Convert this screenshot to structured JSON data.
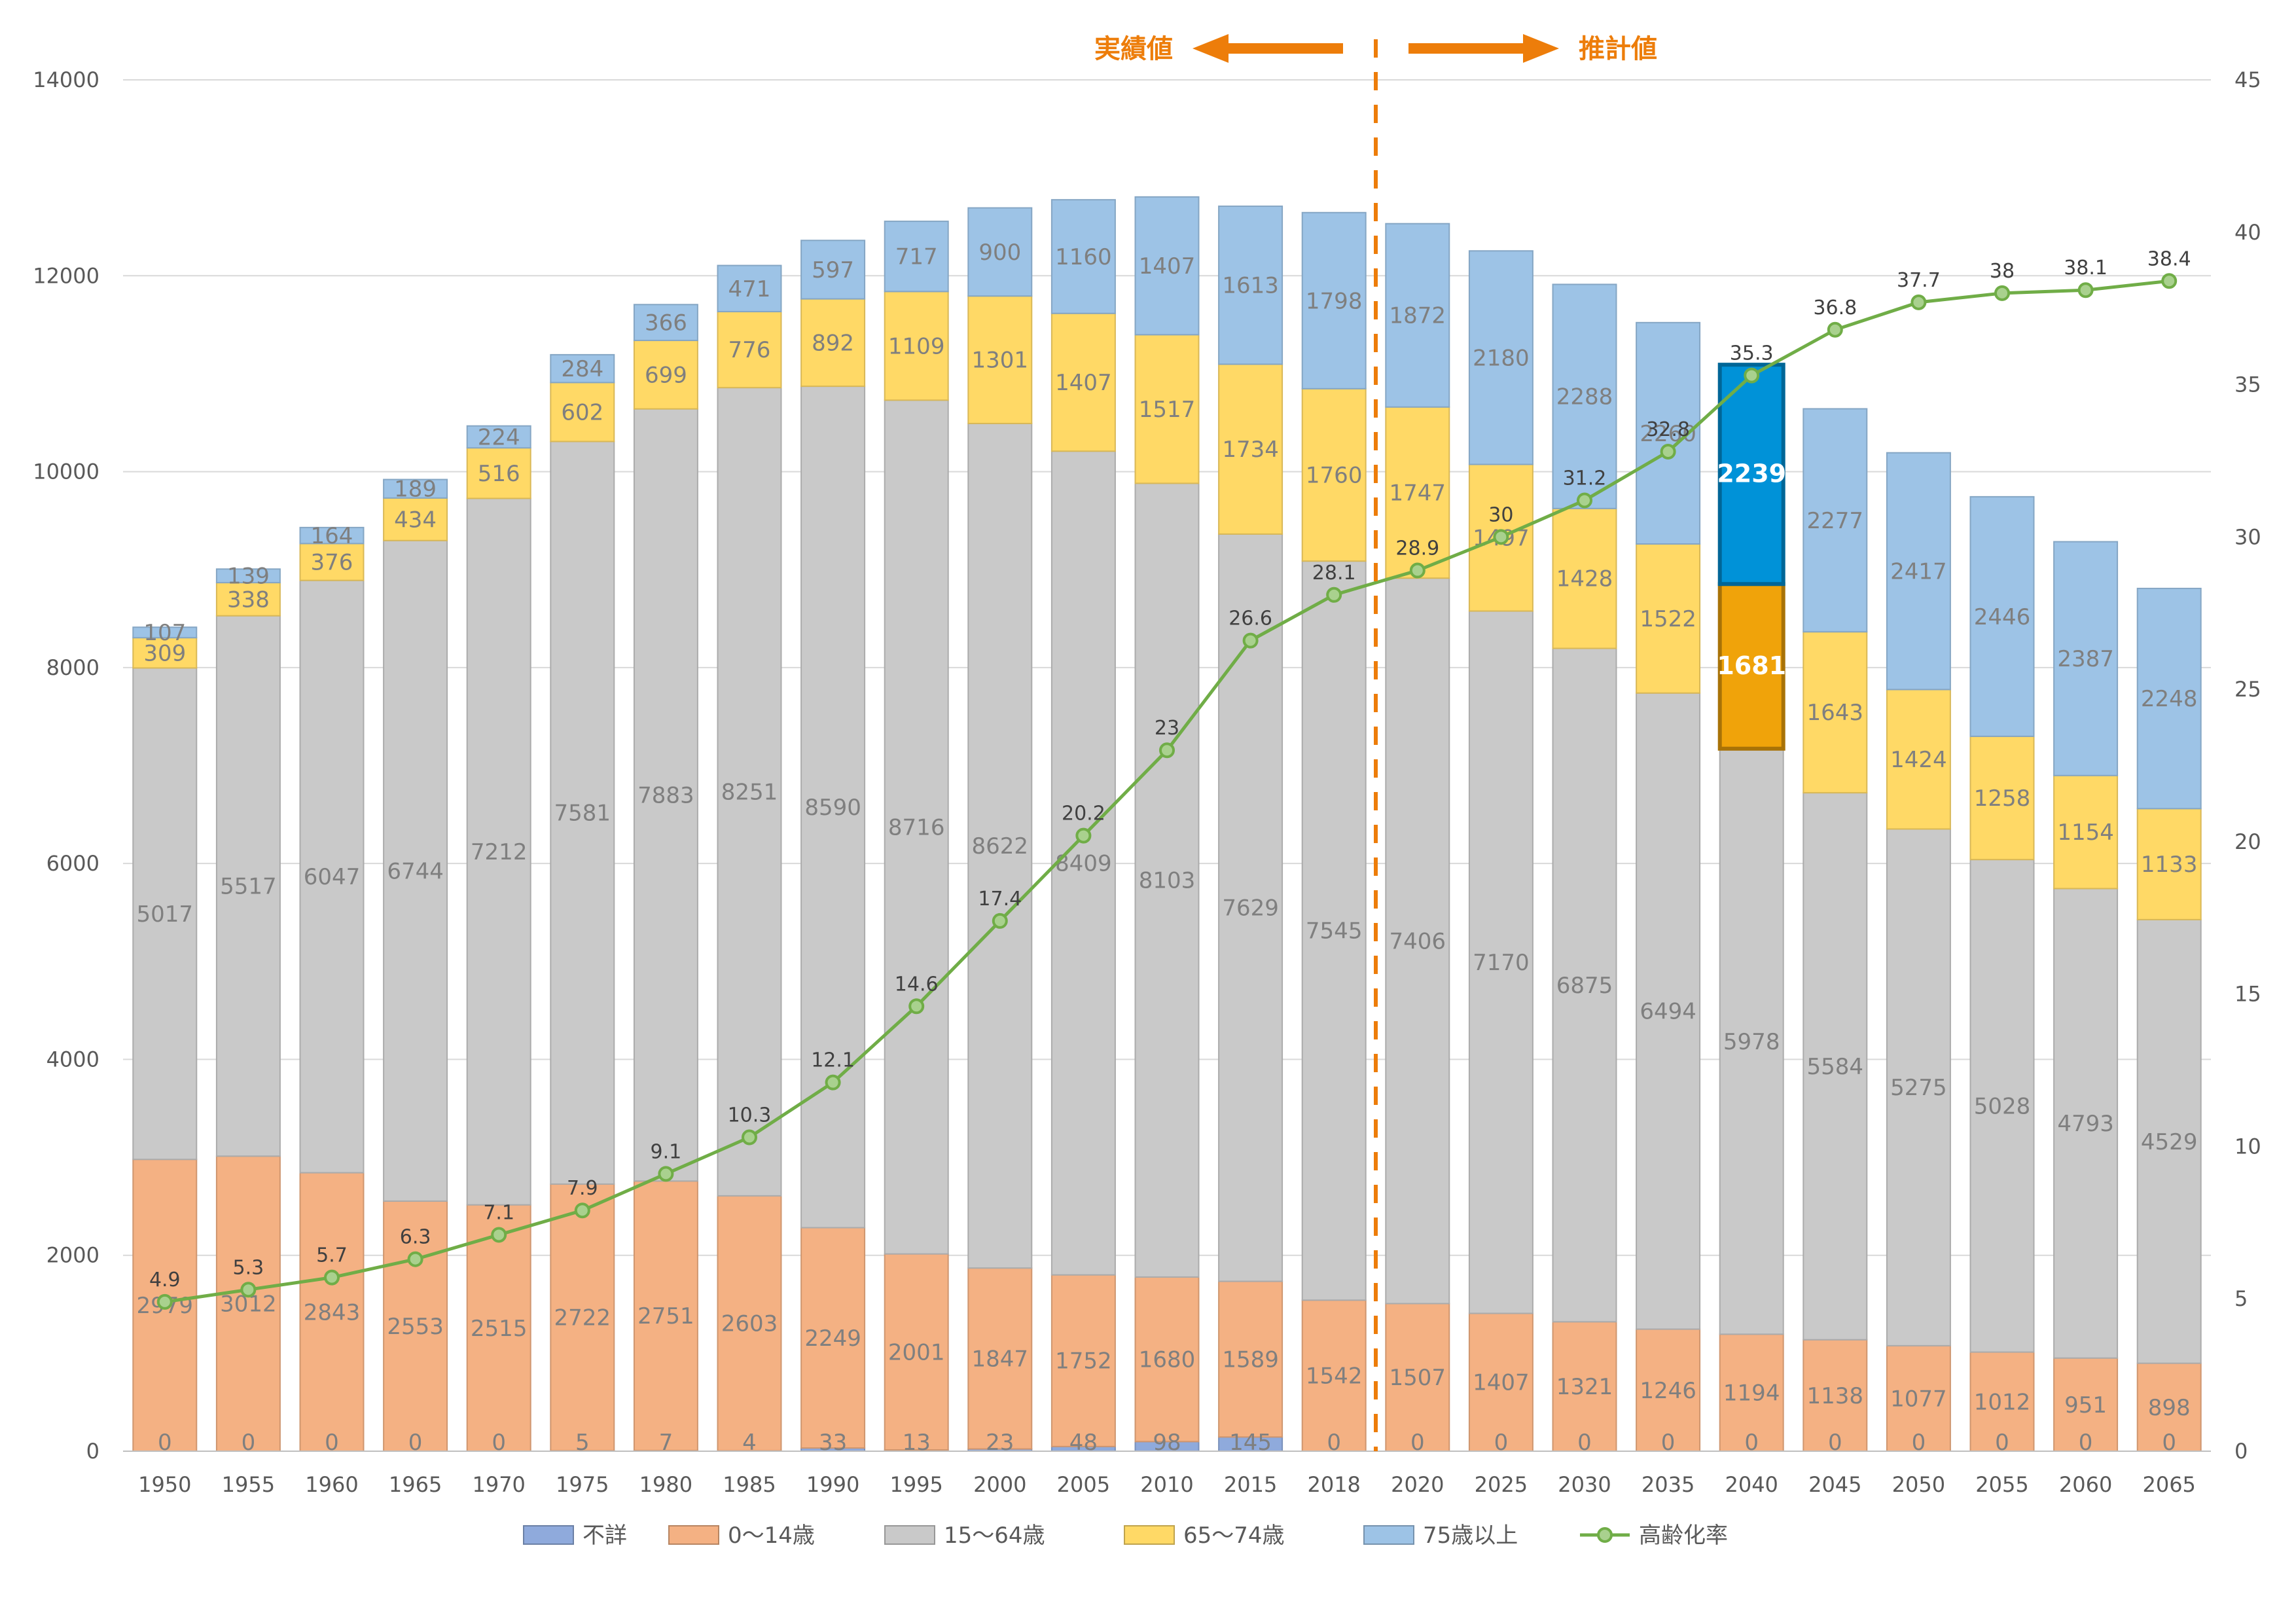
{
  "chart_data": {
    "type": "bar",
    "stacked": true,
    "categories": [
      "1950",
      "1955",
      "1960",
      "1965",
      "1970",
      "1975",
      "1980",
      "1985",
      "1990",
      "1995",
      "2000",
      "2005",
      "2010",
      "2015",
      "2018",
      "2020",
      "2025",
      "2030",
      "2035",
      "2040",
      "2045",
      "2050",
      "2055",
      "2060",
      "2065"
    ],
    "series": [
      {
        "name": "不詳",
        "color": "#8faadc",
        "values": [
          0,
          0,
          0,
          0,
          0,
          5,
          7,
          4,
          33,
          13,
          23,
          48,
          98,
          145,
          0,
          0,
          0,
          0,
          0,
          0,
          0,
          0,
          0,
          0,
          0
        ]
      },
      {
        "name": "0〜14歳",
        "color": "#f4b183",
        "values": [
          2979,
          3012,
          2843,
          2553,
          2515,
          2722,
          2751,
          2603,
          2249,
          2001,
          1847,
          1752,
          1680,
          1589,
          1542,
          1507,
          1407,
          1321,
          1246,
          1194,
          1138,
          1077,
          1012,
          951,
          898
        ]
      },
      {
        "name": "15〜64歳",
        "color": "#c9c9c9",
        "values": [
          5017,
          5517,
          6047,
          6744,
          7212,
          7581,
          7883,
          8251,
          8590,
          8716,
          8622,
          8409,
          8103,
          7629,
          7545,
          7406,
          7170,
          6875,
          6494,
          5978,
          5584,
          5275,
          5028,
          4793,
          4529
        ]
      },
      {
        "name": "65〜74歳",
        "color": "#ffd966",
        "values": [
          309,
          338,
          376,
          434,
          516,
          602,
          699,
          776,
          892,
          1109,
          1301,
          1407,
          1517,
          1734,
          1760,
          1747,
          1497,
          1428,
          1522,
          1681,
          1643,
          1424,
          1258,
          1154,
          1133
        ]
      },
      {
        "name": "75歳以上",
        "color": "#9dc3e6",
        "values": [
          107,
          139,
          164,
          189,
          224,
          284,
          366,
          471,
          597,
          717,
          900,
          1160,
          1407,
          1613,
          1798,
          1872,
          2180,
          2288,
          2260,
          2239,
          2277,
          2417,
          2446,
          2387,
          2248
        ]
      }
    ],
    "line": {
      "name": "高齢化率",
      "color": "#70ad47",
      "axis": "right",
      "values": [
        4.9,
        5.3,
        5.7,
        6.3,
        7.1,
        7.9,
        9.1,
        10.3,
        12.1,
        14.6,
        17.4,
        20.2,
        23,
        26.6,
        28.1,
        28.9,
        30,
        31.2,
        32.8,
        35.3,
        36.8,
        37.7,
        38,
        38.1,
        38.4
      ]
    },
    "highlight": {
      "category": "2040",
      "series": [
        "65〜74歳",
        "75歳以上"
      ],
      "colors": [
        "#f0a30a",
        "#0092d8"
      ]
    },
    "ylim_left": [
      0,
      14000
    ],
    "yticks_left": [
      0,
      2000,
      4000,
      6000,
      8000,
      10000,
      12000,
      14000
    ],
    "ylim_right": [
      0,
      45
    ],
    "yticks_right": [
      0,
      5,
      10,
      15,
      20,
      25,
      30,
      35,
      40,
      45
    ],
    "annotations": {
      "left_text": "実績値",
      "right_text": "推計値",
      "divider_after": "2018"
    },
    "grid": true,
    "legend_position": "bottom"
  }
}
